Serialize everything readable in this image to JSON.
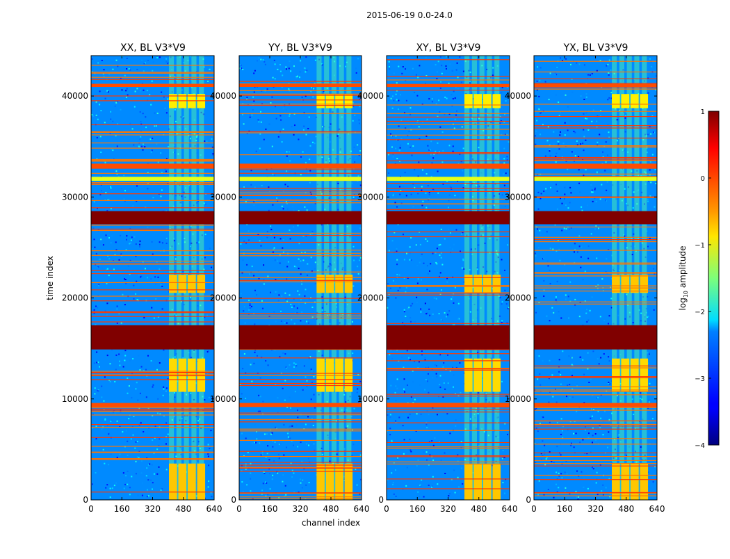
{
  "chart_data": {
    "type": "heatmap",
    "suptitle": "2015-06-19 0.0-24.0",
    "xlabel": "channel index",
    "ylabel": "time index",
    "xlim": [
      0,
      640
    ],
    "ylim": [
      0,
      44000
    ],
    "xticks": [
      0,
      160,
      320,
      480,
      640
    ],
    "yticks": [
      0,
      10000,
      20000,
      30000,
      40000
    ],
    "colorscale": "jet",
    "panels": [
      {
        "title": "XX, BL V3*V9"
      },
      {
        "title": "YY, BL V3*V9"
      },
      {
        "title": "XY, BL V3*V9"
      },
      {
        "title": "YX, BL V3*V9"
      }
    ],
    "colorbar": {
      "label": "log10 amplitude",
      "label_main": "log",
      "label_sub": "10",
      "label_rest": " amplitude",
      "range": [
        -4,
        1
      ],
      "ticks": [
        1,
        0,
        -1,
        -2,
        -3,
        -4
      ],
      "tick_labels": [
        "1",
        "0",
        "−1",
        "−2",
        "−3",
        "−4"
      ]
    },
    "flagged_time_bands": [
      {
        "from": 14900,
        "to": 17300,
        "level": 1.0
      },
      {
        "from": 27300,
        "to": 28600,
        "level": 1.0
      },
      {
        "from": 9200,
        "to": 9600,
        "level": 0.0
      },
      {
        "from": 32800,
        "to": 33300,
        "level": 0.0
      },
      {
        "from": 31600,
        "to": 32000,
        "level": -1.0
      },
      {
        "from": 40900,
        "to": 41200,
        "level": 0.0
      }
    ],
    "bright_channel_range": [
      405,
      600
    ],
    "bright_time_bands": [
      {
        "from": 0,
        "to": 3600,
        "level": -0.6
      },
      {
        "from": 10700,
        "to": 14000,
        "level": -0.7
      },
      {
        "from": 20500,
        "to": 22300,
        "level": -0.6
      },
      {
        "from": 38800,
        "to": 40200,
        "level": -0.8
      }
    ],
    "background_level": -2.7
  }
}
